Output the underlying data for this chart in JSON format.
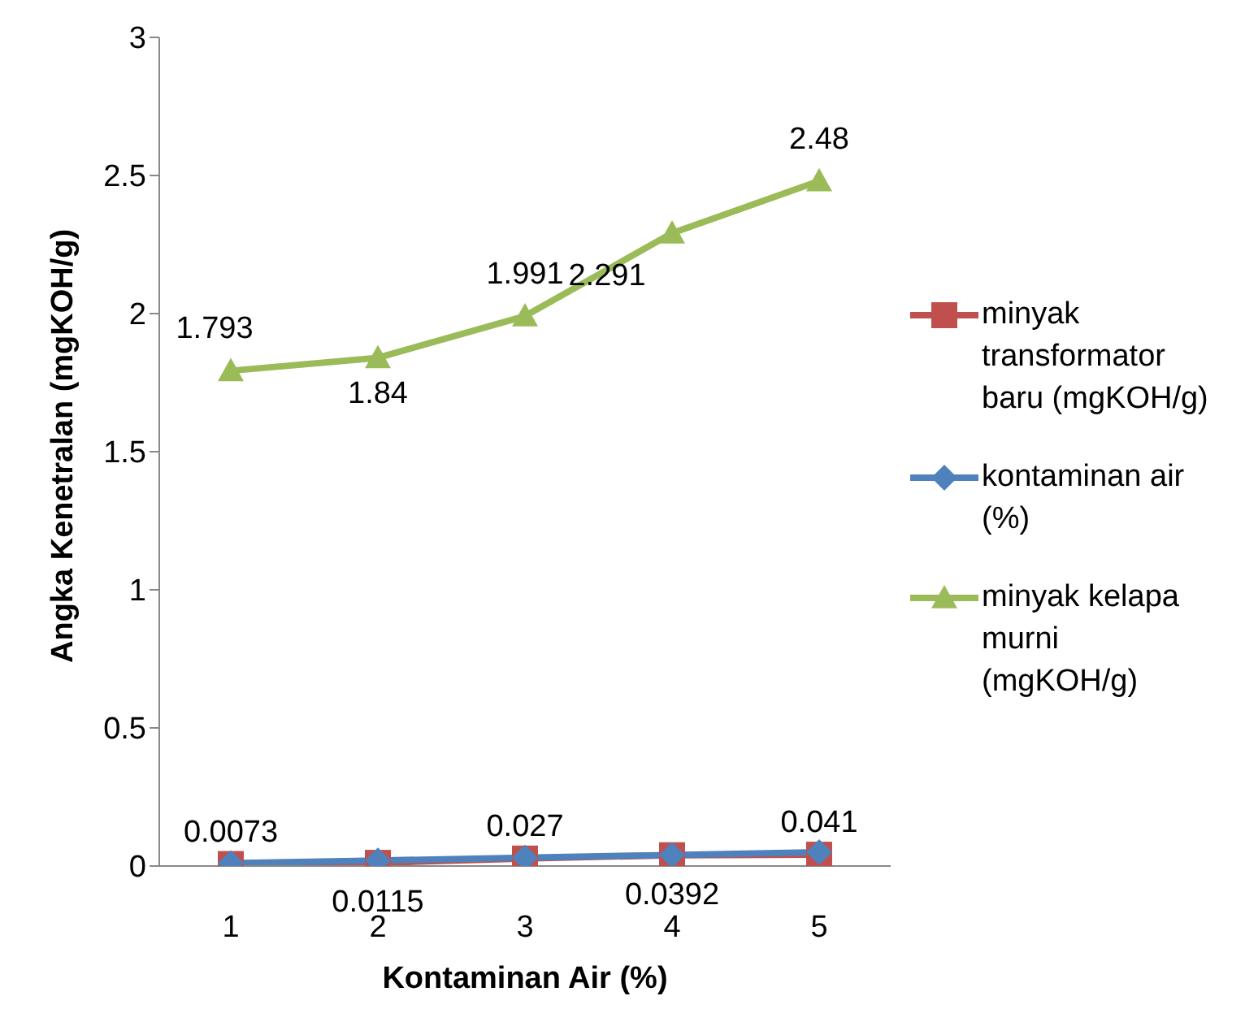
{
  "chart_data": {
    "type": "line",
    "xlabel": "Kontaminan Air (%)",
    "ylabel": "Angka Kenetralan (mgKOH/g)",
    "categories": [
      "1",
      "2",
      "3",
      "4",
      "5"
    ],
    "ylim": [
      0,
      3
    ],
    "yticks": [
      0,
      0.5,
      1,
      1.5,
      2,
      2.5,
      3
    ],
    "grid": false,
    "legend": "right",
    "series": [
      {
        "name": "minyak transformator baru (mgKOH/g)",
        "color": "#c0504d",
        "marker": "square",
        "values": [
          0.0073,
          0.0115,
          0.027,
          0.0392,
          0.041
        ],
        "value_labels": [
          "0.0073",
          "0.0115",
          "0.027",
          "0.0392",
          "0.041"
        ]
      },
      {
        "name": "kontaminan air (%)",
        "color": "#4f81bd",
        "marker": "diamond",
        "values": [
          0.01,
          0.02,
          0.03,
          0.04,
          0.05
        ]
      },
      {
        "name": "minyak kelapa murni (mgKOH/g)",
        "color": "#9bbb59",
        "marker": "triangle",
        "values": [
          1.793,
          1.84,
          1.991,
          2.291,
          2.48
        ],
        "value_labels": [
          "1.793",
          "1.84",
          "1.991",
          "2.291",
          "2.48"
        ]
      }
    ]
  }
}
